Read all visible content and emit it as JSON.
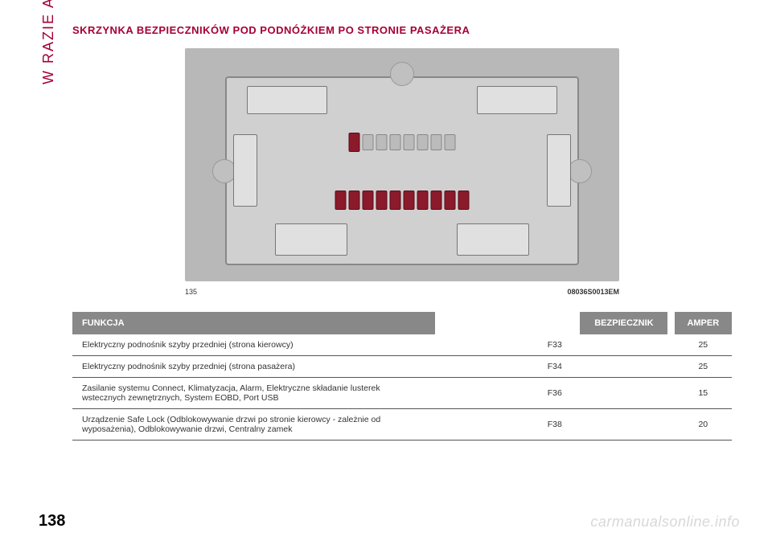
{
  "side_label": "W RAZIE AWARII",
  "section_title": "SKRZYNKA BEZPIECZNIKÓW POD PODNÓŻKIEM PO STRONIE PASAŻERA",
  "diagram": {
    "figure_number": "135",
    "image_code": "08036S0013EM",
    "bg_color": "#b8b8b8",
    "fusebox_color": "#d0d0d0",
    "fuse_red_color": "#8b1a2b",
    "top_row_fuses": [
      {
        "type": "red"
      },
      {
        "type": "slot"
      },
      {
        "type": "slot"
      },
      {
        "type": "slot"
      },
      {
        "type": "slot"
      },
      {
        "type": "slot"
      },
      {
        "type": "slot"
      },
      {
        "type": "slot"
      }
    ],
    "mid_row_fuses": [
      {
        "type": "red"
      },
      {
        "type": "red"
      },
      {
        "type": "red"
      },
      {
        "type": "red"
      },
      {
        "type": "red"
      },
      {
        "type": "red"
      },
      {
        "type": "red"
      },
      {
        "type": "red"
      },
      {
        "type": "red"
      },
      {
        "type": "red"
      }
    ]
  },
  "table": {
    "header_bg": "#888888",
    "header_text_color": "#ffffff",
    "columns": [
      "FUNKCJA",
      "BEZPIECZNIK",
      "AMPER"
    ],
    "rows": [
      {
        "function": "Elektryczny podnośnik szyby przedniej (strona kierowcy)",
        "fuse": "F33",
        "amps": "25"
      },
      {
        "function": "Elektryczny podnośnik szyby przedniej (strona pasażera)",
        "fuse": "F34",
        "amps": "25"
      },
      {
        "function": "Zasilanie systemu Connect, Klimatyzacja, Alarm, Elektryczne składanie lusterek wstecznych zewnętrznych, System EOBD, Port USB",
        "fuse": "F36",
        "amps": "15"
      },
      {
        "function": "Urządzenie Safe Lock (Odblokowywanie drzwi po stronie kierowcy - zależnie od wyposażenia), Odblokowywanie drzwi, Centralny zamek",
        "fuse": "F38",
        "amps": "20"
      }
    ]
  },
  "page_number": "138",
  "watermark": "carmanualsonline.info",
  "colors": {
    "brand_red": "#a50034",
    "text": "#333333"
  }
}
